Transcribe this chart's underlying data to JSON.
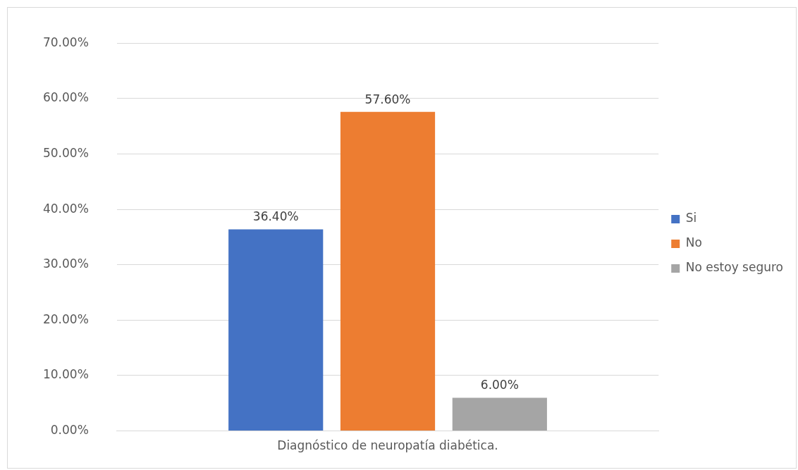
{
  "chart_data": {
    "type": "bar",
    "categories": [
      "Diagnóstico de neuropatía diabética."
    ],
    "series": [
      {
        "name": "Si",
        "color": "#4472c4",
        "values": [
          36.4
        ],
        "value_labels": [
          "36.40%"
        ]
      },
      {
        "name": "No",
        "color": "#ed7d31",
        "values": [
          57.6
        ],
        "value_labels": [
          "57.60%"
        ]
      },
      {
        "name": "No estoy seguro",
        "color": "#a5a5a5",
        "values": [
          6.0
        ],
        "value_labels": [
          "6.00%"
        ]
      }
    ],
    "ylim": [
      0,
      70
    ],
    "yticks": [
      {
        "value": 0,
        "label": "0.00%"
      },
      {
        "value": 10,
        "label": "10.00%"
      },
      {
        "value": 20,
        "label": "20.00%"
      },
      {
        "value": 30,
        "label": "30.00%"
      },
      {
        "value": 40,
        "label": "40.00%"
      },
      {
        "value": 50,
        "label": "50.00%"
      },
      {
        "value": 60,
        "label": "60.00%"
      },
      {
        "value": 70,
        "label": "70.00%"
      }
    ],
    "grid": "y",
    "legend": "right"
  }
}
